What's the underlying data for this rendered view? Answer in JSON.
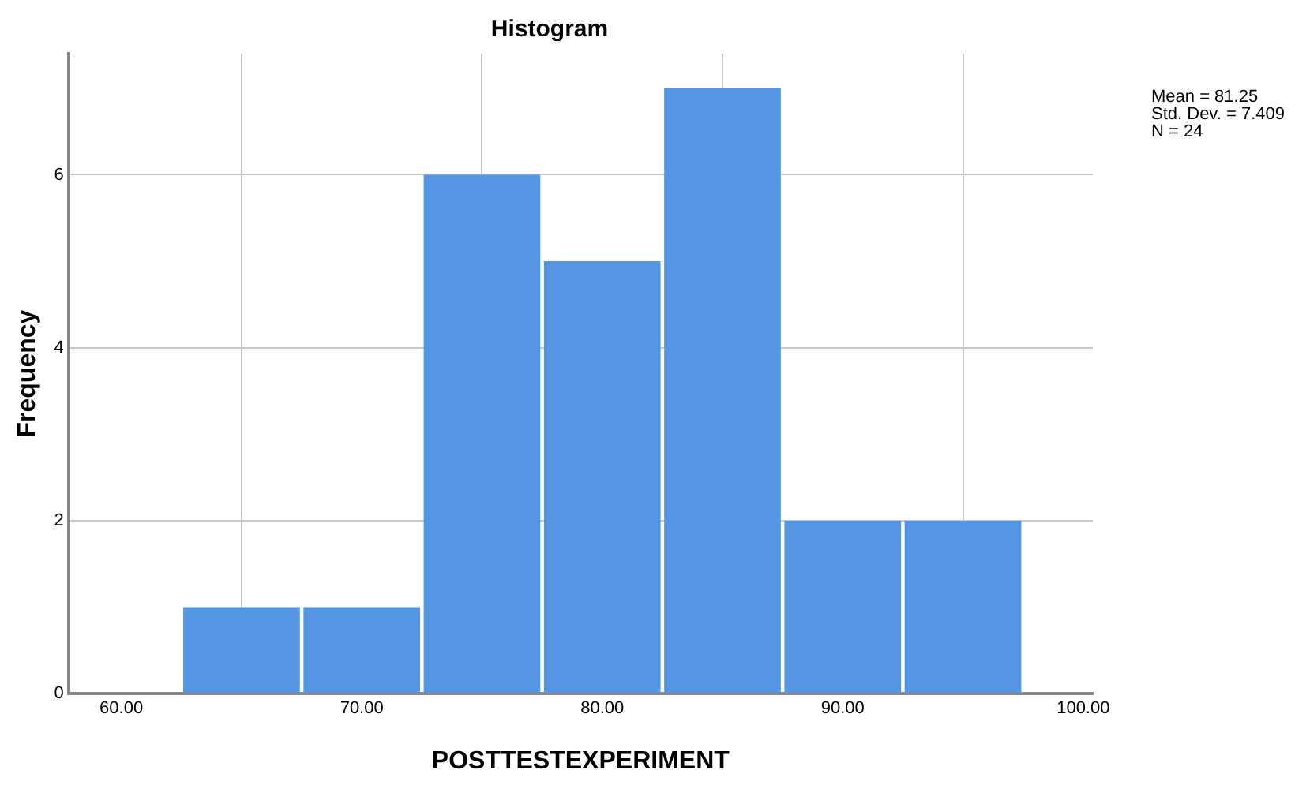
{
  "chart_data": {
    "type": "histogram",
    "title": "Histogram",
    "xlabel": "POSTTESTEXPERIMENT",
    "ylabel": "Frequency",
    "bins": [
      62.5,
      67.5,
      72.5,
      77.5,
      82.5,
      87.5,
      92.5,
      97.5
    ],
    "values": [
      1,
      1,
      6,
      5,
      7,
      2,
      2
    ],
    "color": "#5596e4",
    "xlim": [
      57.8,
      100.4
    ],
    "xticks": [
      {
        "value": 60,
        "label": "60.00"
      },
      {
        "value": 70,
        "label": "70.00"
      },
      {
        "value": 80,
        "label": "80.00"
      },
      {
        "value": 90,
        "label": "90.00"
      },
      {
        "value": 100,
        "label": "100.00"
      }
    ],
    "ylim": [
      0,
      7.4
    ],
    "yticks": [
      0,
      2,
      4,
      6
    ],
    "grid": true,
    "legend": false,
    "annotations": [
      "Mean = 81.25",
      "Std. Dev. = 7.409",
      "N = 24"
    ]
  }
}
